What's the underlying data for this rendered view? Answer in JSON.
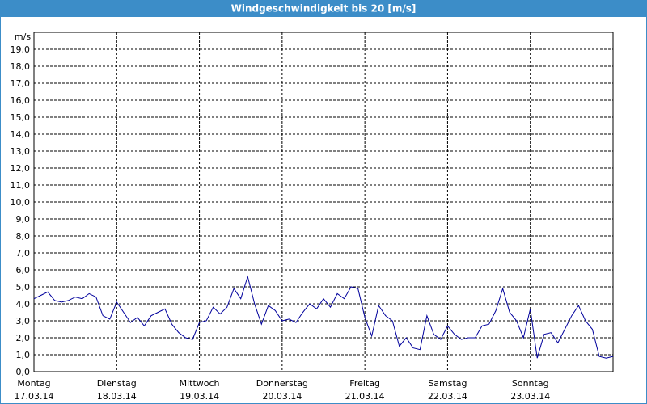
{
  "chart_data": {
    "type": "line",
    "title": "Windgeschwindigkeit bis 20 [m/s]",
    "y_unit": "m/s",
    "x": [
      0,
      2,
      4,
      6,
      8,
      10,
      12,
      14,
      16,
      18,
      20,
      22,
      24,
      26,
      28,
      30,
      32,
      34,
      36,
      38,
      40,
      42,
      44,
      46,
      48,
      50,
      52,
      54,
      56,
      58,
      60,
      62,
      64,
      66,
      68,
      70,
      72,
      74,
      76,
      78,
      80,
      82,
      84,
      86,
      88,
      90,
      92,
      94,
      96,
      98,
      100,
      102,
      104,
      106,
      108,
      110,
      112,
      114,
      116,
      118,
      120,
      122,
      124,
      126,
      128,
      130,
      132,
      134,
      136,
      138,
      140,
      142,
      144,
      146,
      148,
      150,
      152,
      154,
      156,
      158,
      160,
      162,
      164,
      166,
      168
    ],
    "values": [
      4.3,
      4.5,
      4.7,
      4.2,
      4.1,
      4.2,
      4.4,
      4.3,
      4.6,
      4.4,
      3.3,
      3.1,
      4.1,
      3.5,
      2.9,
      3.2,
      2.7,
      3.3,
      3.5,
      3.7,
      2.8,
      2.3,
      2.0,
      1.9,
      2.9,
      3.0,
      3.8,
      3.4,
      3.8,
      4.9,
      4.3,
      5.6,
      4.0,
      2.8,
      3.9,
      3.6,
      3.0,
      3.1,
      2.9,
      3.5,
      4.0,
      3.7,
      4.3,
      3.8,
      4.6,
      4.3,
      5.0,
      4.9,
      3.2,
      2.1,
      3.9,
      3.3,
      3.0,
      1.5,
      2.0,
      1.4,
      1.3,
      3.3,
      2.2,
      1.9,
      2.7,
      2.2,
      1.9,
      2.0,
      2.0,
      2.7,
      2.8,
      3.6,
      4.9,
      3.5,
      3.0,
      2.0,
      3.7,
      0.8,
      2.2,
      2.3,
      1.7,
      2.5,
      3.3,
      3.9,
      3.0,
      2.5,
      0.9,
      0.8,
      0.9
    ],
    "color": "#00009c",
    "xlim": [
      0,
      168
    ],
    "xticks": [
      {
        "value": 0,
        "label": [
          "Montag",
          "17.03.14"
        ]
      },
      {
        "value": 24,
        "label": [
          "Dienstag",
          "18.03.14"
        ]
      },
      {
        "value": 48,
        "label": [
          "Mittwoch",
          "19.03.14"
        ]
      },
      {
        "value": 72,
        "label": [
          "Donnerstag",
          "20.03.14"
        ]
      },
      {
        "value": 96,
        "label": [
          "Freitag",
          "21.03.14"
        ]
      },
      {
        "value": 120,
        "label": [
          "Samstag",
          "22.03.14"
        ]
      },
      {
        "value": 144,
        "label": [
          "Sonntag",
          "23.03.14"
        ]
      }
    ],
    "ylim": [
      0,
      20
    ],
    "yticks": [
      {
        "value": 0,
        "label": "0,0"
      },
      {
        "value": 1,
        "label": "1,0"
      },
      {
        "value": 2,
        "label": "2,0"
      },
      {
        "value": 3,
        "label": "3,0"
      },
      {
        "value": 4,
        "label": "4,0"
      },
      {
        "value": 5,
        "label": "5,0"
      },
      {
        "value": 6,
        "label": "6,0"
      },
      {
        "value": 7,
        "label": "7,0"
      },
      {
        "value": 8,
        "label": "8,0"
      },
      {
        "value": 9,
        "label": "9,0"
      },
      {
        "value": 10,
        "label": "10,0"
      },
      {
        "value": 11,
        "label": "11,0"
      },
      {
        "value": 12,
        "label": "12,0"
      },
      {
        "value": 13,
        "label": "13,0"
      },
      {
        "value": 14,
        "label": "14,0"
      },
      {
        "value": 15,
        "label": "15,0"
      },
      {
        "value": 16,
        "label": "16,0"
      },
      {
        "value": 17,
        "label": "17,0"
      },
      {
        "value": 18,
        "label": "18,0"
      },
      {
        "value": 19,
        "label": "19,0"
      }
    ],
    "grid": true
  }
}
